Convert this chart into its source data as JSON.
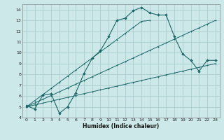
{
  "xlabel": "Humidex (Indice chaleur)",
  "bg_color": "#cce8e8",
  "grid_color": "#aacccc",
  "line_color": "#1a6666",
  "xlim": [
    -0.5,
    23.5
  ],
  "ylim": [
    4,
    14.5
  ],
  "xtick_labels": [
    "0",
    "1",
    "2",
    "3",
    "4",
    "5",
    "6",
    "7",
    "8",
    "9",
    "10",
    "11",
    "12",
    "13",
    "14",
    "15",
    "16",
    "17",
    "18",
    "19",
    "20",
    "21",
    "22",
    "23"
  ],
  "ytick_labels": [
    "4",
    "5",
    "6",
    "7",
    "8",
    "9",
    "10",
    "11",
    "12",
    "13",
    "14"
  ],
  "ytick_vals": [
    4,
    5,
    6,
    7,
    8,
    9,
    10,
    11,
    12,
    13,
    14
  ],
  "series_main": [
    5.1,
    4.8,
    6.1,
    6.2,
    4.4,
    5.0,
    6.3,
    8.1,
    9.5,
    10.2,
    11.5,
    13.0,
    13.2,
    13.9,
    14.2,
    13.7,
    13.5,
    13.5,
    11.5,
    9.9,
    9.3,
    8.3,
    9.3,
    9.3
  ],
  "series_line1": [
    5.0,
    5.57,
    6.14,
    6.7,
    7.27,
    7.83,
    8.4,
    8.96,
    9.52,
    10.09,
    10.65,
    11.22,
    11.78,
    12.35,
    12.91,
    13.0
  ],
  "series_line2": [
    5.0,
    5.35,
    5.7,
    6.04,
    6.39,
    6.74,
    7.09,
    7.43,
    7.78,
    8.13,
    8.48,
    8.83,
    9.17,
    9.52,
    9.87,
    10.22,
    10.57,
    10.91,
    11.26,
    11.61,
    11.96,
    12.3,
    12.65,
    13.0
  ],
  "series_line3": [
    5.0,
    5.17,
    5.35,
    5.52,
    5.7,
    5.87,
    6.04,
    6.22,
    6.39,
    6.57,
    6.74,
    6.91,
    7.09,
    7.26,
    7.43,
    7.61,
    7.78,
    7.96,
    8.13,
    8.3,
    8.48,
    8.65,
    8.83,
    9.0
  ]
}
